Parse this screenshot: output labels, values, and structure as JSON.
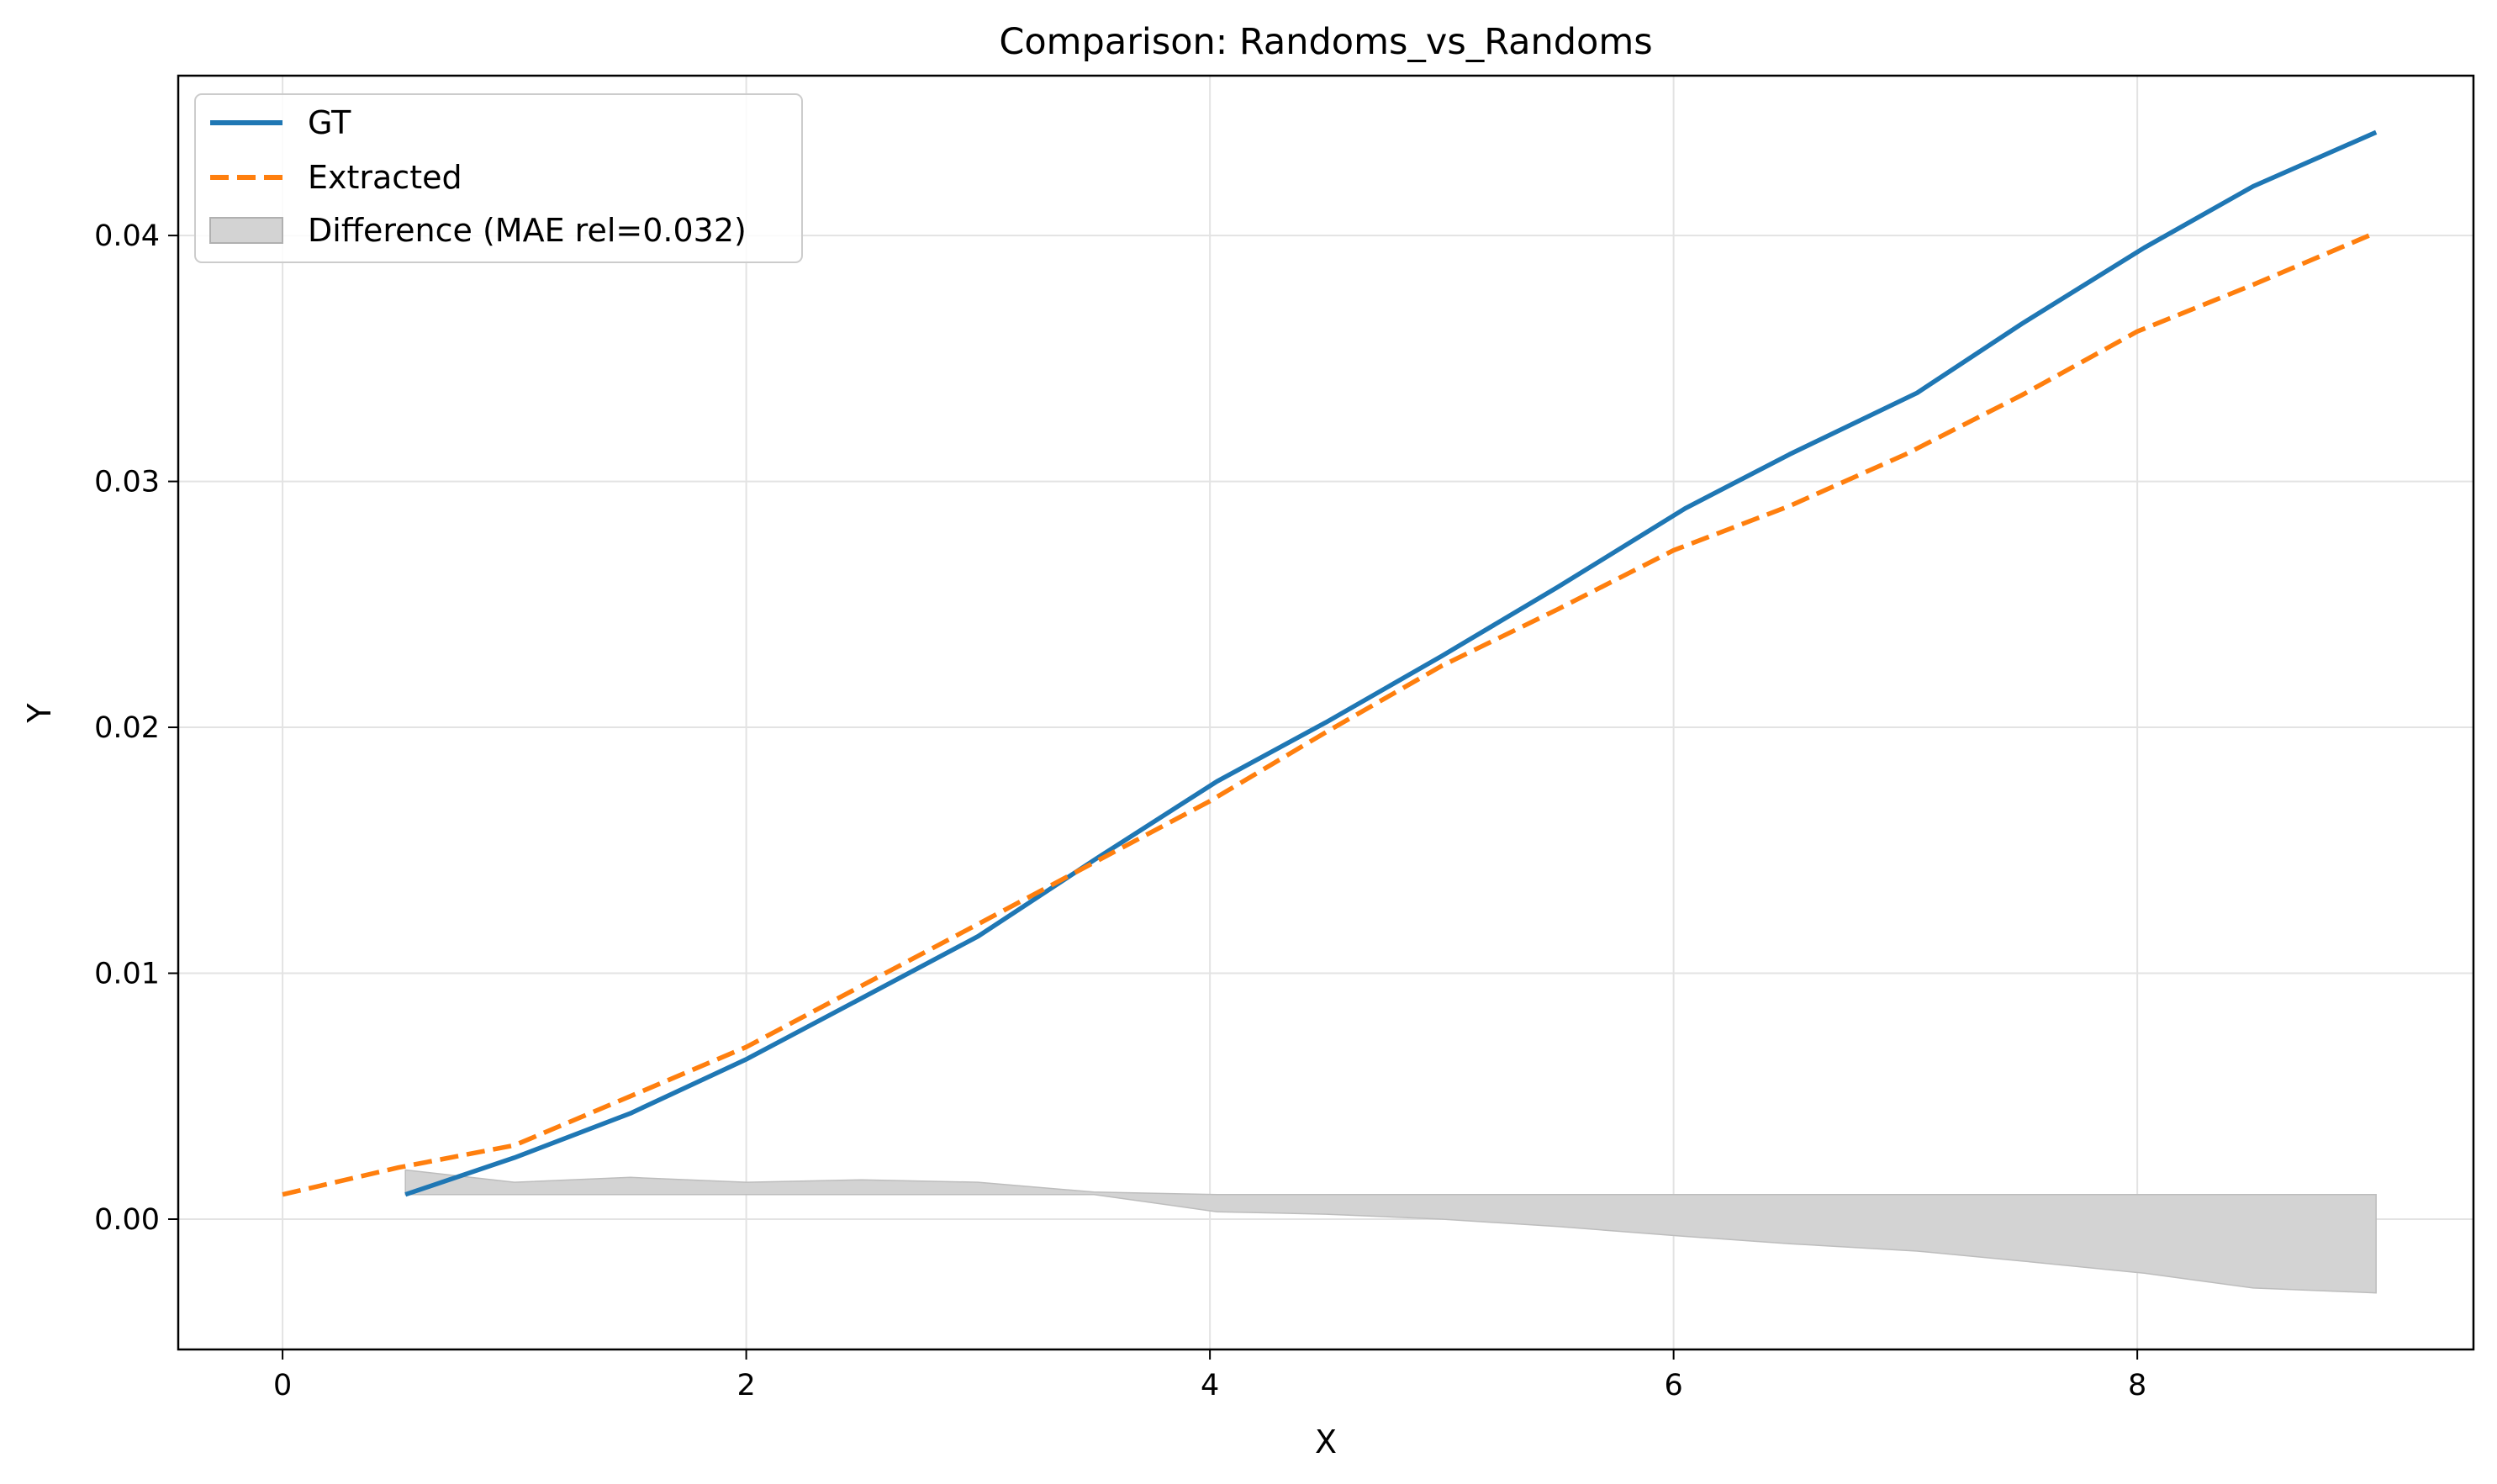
{
  "chart_data": {
    "type": "line",
    "title": "Comparison: Randoms_vs_Randoms",
    "xlabel": "X",
    "ylabel": "Y",
    "xlim": [
      -0.45,
      9.45
    ],
    "ylim": [
      -0.0053,
      0.0465
    ],
    "xticks": [
      0,
      2,
      4,
      6,
      8
    ],
    "xtick_labels": [
      "0",
      "2",
      "4",
      "6",
      "8"
    ],
    "yticks": [
      0.0,
      0.01,
      0.02,
      0.03,
      0.04
    ],
    "ytick_labels": [
      "0.00",
      "0.01",
      "0.02",
      "0.03",
      "0.04"
    ],
    "grid": true,
    "legend_position": "upper-left",
    "series": [
      {
        "name": "GT",
        "style": "solid",
        "color": "#1f77b4",
        "x": [
          0.53,
          1.0,
          1.5,
          2.0,
          2.5,
          3.0,
          3.5,
          4.03,
          4.5,
          5.0,
          5.5,
          6.05,
          6.5,
          7.05,
          7.5,
          8.03,
          8.5,
          9.03
        ],
        "y": [
          0.001,
          0.0025,
          0.0043,
          0.0065,
          0.009,
          0.0115,
          0.0146,
          0.0178,
          0.0202,
          0.0229,
          0.0257,
          0.0289,
          0.0311,
          0.0336,
          0.0364,
          0.0395,
          0.042,
          0.0442
        ]
      },
      {
        "name": "Extracted",
        "style": "dashed",
        "color": "#ff7f0e",
        "x": [
          0.0,
          0.5,
          1.0,
          1.5,
          2.0,
          2.5,
          3.0,
          3.5,
          4.0,
          4.5,
          5.0,
          5.5,
          6.0,
          6.5,
          7.0,
          7.5,
          8.0,
          8.5,
          9.0
        ],
        "y": [
          0.001,
          0.0021,
          0.003,
          0.005,
          0.007,
          0.0095,
          0.012,
          0.0145,
          0.017,
          0.0198,
          0.0225,
          0.0248,
          0.0272,
          0.029,
          0.0311,
          0.0335,
          0.0361,
          0.038,
          0.04
        ]
      }
    ],
    "fill": {
      "name": "Difference (MAE rel=0.032)",
      "color": "#d3d3d3",
      "x": [
        0.53,
        1.0,
        1.5,
        2.0,
        2.5,
        3.0,
        3.5,
        4.03,
        4.5,
        5.0,
        5.5,
        6.05,
        6.5,
        7.05,
        7.5,
        8.03,
        8.5,
        9.03
      ],
      "upper": [
        0.002,
        0.0015,
        0.0017,
        0.0015,
        0.0016,
        0.0015,
        0.0011,
        0.001,
        0.001,
        0.001,
        0.001,
        0.001,
        0.001,
        0.001,
        0.001,
        0.001,
        0.001,
        0.001
      ],
      "lower": [
        0.001,
        0.001,
        0.001,
        0.001,
        0.001,
        0.001,
        0.001,
        0.0003,
        0.0002,
        0.0,
        -0.0003,
        -0.0007,
        -0.001,
        -0.0013,
        -0.0017,
        -0.0022,
        -0.0028,
        -0.003
      ]
    }
  }
}
